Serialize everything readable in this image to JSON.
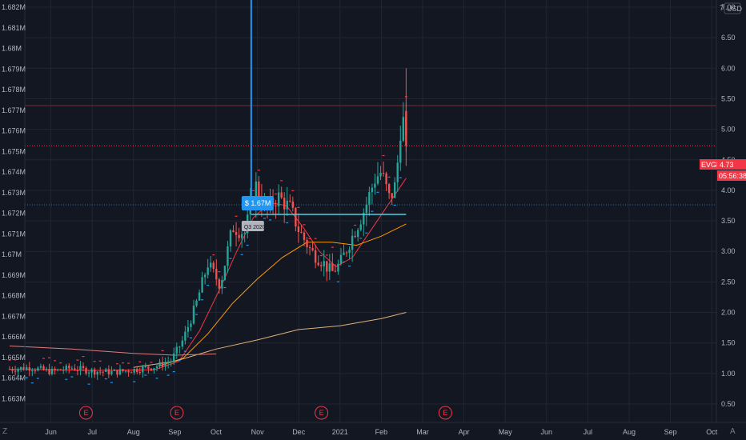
{
  "chart_data": {
    "type": "candlestick",
    "symbol": "EVGN",
    "currency": "USD",
    "last_price_label": "4.73",
    "last_price": 4.73,
    "countdown": "05:56:38",
    "right_axis": {
      "ticks": [
        "7.00",
        "6.50",
        "6.00",
        "5.50",
        "5.00",
        "4.50",
        "4.00",
        "3.50",
        "3.00",
        "2.50",
        "2.00",
        "1.50",
        "1.00",
        "0.50"
      ],
      "top_label": "7",
      "range": [
        0.5,
        7.0
      ]
    },
    "left_axis": {
      "ticks": [
        "1.682M",
        "1.681M",
        "1.68M",
        "1.679M",
        "1.678M",
        "1.677M",
        "1.676M",
        "1.675M",
        "1.674M",
        "1.673M",
        "1.672M",
        "1.671M",
        "1.67M",
        "1.669M",
        "1.668M",
        "1.667M",
        "1.666M",
        "1.665M",
        "1.664M",
        "1.663M"
      ]
    },
    "x_axis": {
      "labels": [
        "Jun",
        "Jul",
        "Aug",
        "Sep",
        "Oct",
        "Nov",
        "Dec",
        "2021",
        "Feb",
        "Mar",
        "Apr",
        "May",
        "Jun",
        "Jul",
        "Aug",
        "Sep",
        "Oct"
      ]
    },
    "events": [
      {
        "label": "E",
        "month_index": 1.85
      },
      {
        "label": "E",
        "month_index": 4.05
      },
      {
        "label": "E",
        "month_index": 7.55
      },
      {
        "label": "E",
        "month_index": 10.55
      }
    ],
    "callout": {
      "value_label": "$ 1.67M",
      "period_label": "Q3 2020",
      "month_index": 5.85
    },
    "price_anchors": [
      [
        0.0,
        1.07
      ],
      [
        0.5,
        1.1
      ],
      [
        1.0,
        1.03
      ],
      [
        1.5,
        1.09
      ],
      [
        2.0,
        1.04
      ],
      [
        2.5,
        1.02
      ],
      [
        3.0,
        1.06
      ],
      [
        3.5,
        1.11
      ],
      [
        3.9,
        1.2
      ],
      [
        4.2,
        1.55
      ],
      [
        4.5,
        2.1
      ],
      [
        4.8,
        2.8
      ],
      [
        5.1,
        2.45
      ],
      [
        5.4,
        3.4
      ],
      [
        5.7,
        3.3
      ],
      [
        5.95,
        4.1
      ],
      [
        6.2,
        3.65
      ],
      [
        6.5,
        3.9
      ],
      [
        6.8,
        3.7
      ],
      [
        7.0,
        3.35
      ],
      [
        7.3,
        3.0
      ],
      [
        7.55,
        2.85
      ],
      [
        7.8,
        2.65
      ],
      [
        8.0,
        2.8
      ],
      [
        8.3,
        3.25
      ],
      [
        8.6,
        3.7
      ],
      [
        8.85,
        4.2
      ],
      [
        9.0,
        4.3
      ],
      [
        9.2,
        3.85
      ],
      [
        9.35,
        4.1
      ],
      [
        9.5,
        5.3
      ],
      [
        9.6,
        4.73
      ]
    ],
    "moving_averages": [
      {
        "color": "#f23645",
        "points": [
          [
            0.0,
            1.07
          ],
          [
            2.0,
            1.05
          ],
          [
            3.5,
            1.06
          ],
          [
            4.1,
            1.2
          ],
          [
            4.6,
            1.7
          ],
          [
            5.1,
            2.4
          ],
          [
            5.5,
            3.0
          ],
          [
            5.9,
            3.55
          ],
          [
            6.3,
            3.8
          ],
          [
            6.7,
            3.75
          ],
          [
            7.1,
            3.4
          ],
          [
            7.5,
            3.0
          ],
          [
            7.9,
            2.75
          ],
          [
            8.3,
            2.9
          ],
          [
            8.7,
            3.3
          ],
          [
            9.1,
            3.7
          ],
          [
            9.6,
            4.2
          ]
        ]
      },
      {
        "color": "#ff9800",
        "points": [
          [
            3.6,
            1.12
          ],
          [
            4.2,
            1.25
          ],
          [
            4.8,
            1.65
          ],
          [
            5.4,
            2.15
          ],
          [
            6.0,
            2.55
          ],
          [
            6.6,
            2.9
          ],
          [
            7.2,
            3.15
          ],
          [
            7.8,
            3.15
          ],
          [
            8.4,
            3.1
          ],
          [
            9.0,
            3.25
          ],
          [
            9.6,
            3.45
          ]
        ]
      },
      {
        "color": "#e0b07c",
        "points": [
          [
            3.0,
            1.1
          ],
          [
            4.0,
            1.2
          ],
          [
            5.0,
            1.4
          ],
          [
            6.0,
            1.55
          ],
          [
            7.0,
            1.72
          ],
          [
            8.0,
            1.78
          ],
          [
            9.0,
            1.9
          ],
          [
            9.6,
            2.0
          ]
        ]
      },
      {
        "color": "#e07b7b",
        "points": [
          [
            0.0,
            1.45
          ],
          [
            1.5,
            1.4
          ],
          [
            3.0,
            1.33
          ],
          [
            4.0,
            1.3
          ],
          [
            5.0,
            1.32
          ]
        ]
      }
    ],
    "grid": true
  }
}
